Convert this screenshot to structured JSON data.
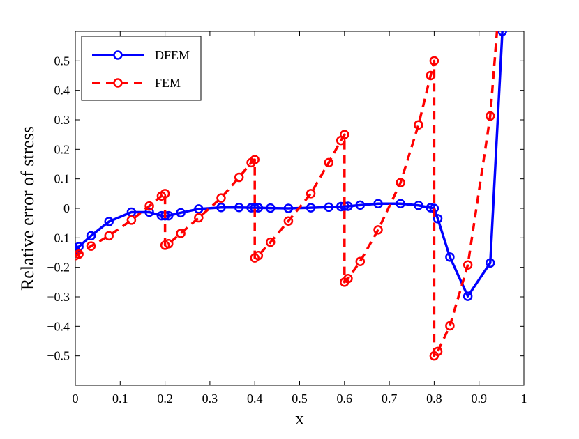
{
  "chart_data": {
    "type": "line",
    "title": "",
    "xlabel": "x",
    "ylabel": "Relative error of stress",
    "xlim": [
      0,
      1
    ],
    "ylim": [
      -0.6,
      0.6
    ],
    "xticks": [
      0,
      0.1,
      0.2,
      0.3,
      0.4,
      0.5,
      0.6,
      0.7,
      0.8,
      0.9,
      1
    ],
    "xtick_labels": [
      "0",
      "0.1",
      "0.2",
      "0.3",
      "0.4",
      "0.5",
      "0.6",
      "0.7",
      "0.8",
      "0.9",
      "1"
    ],
    "yticks": [
      -0.5,
      -0.4,
      -0.3,
      -0.2,
      -0.1,
      0,
      0.1,
      0.2,
      0.3,
      0.4,
      0.5
    ],
    "ytick_labels": [
      "−0.5",
      "−0.4",
      "−0.3",
      "−0.2",
      "−0.1",
      "0",
      "0.1",
      "0.2",
      "0.3",
      "0.4",
      "0.5"
    ],
    "grid": false,
    "legend_position": "top-left",
    "series": [
      {
        "name": "DFEM",
        "color": "#0000ff",
        "line_style": "solid",
        "marker": "circle",
        "x": [
          0,
          0.008,
          0.035,
          0.075,
          0.125,
          0.165,
          0.192,
          0.2,
          0.208,
          0.235,
          0.275,
          0.325,
          0.365,
          0.392,
          0.4,
          0.408,
          0.435,
          0.475,
          0.525,
          0.565,
          0.592,
          0.6,
          0.608,
          0.635,
          0.675,
          0.725,
          0.765,
          0.792,
          0.8,
          0.808,
          0.835,
          0.875,
          0.925,
          0.952
        ],
        "y": [
          -0.14,
          -0.13,
          -0.093,
          -0.045,
          -0.013,
          -0.013,
          -0.025,
          -0.025,
          -0.025,
          -0.015,
          -0.002,
          0.003,
          0.003,
          0.002,
          0.002,
          0.002,
          0.001,
          0.0,
          0.002,
          0.004,
          0.006,
          0.007,
          0.007,
          0.011,
          0.016,
          0.016,
          0.01,
          0.002,
          0.0,
          -0.035,
          -0.165,
          -0.298,
          -0.185,
          0.6
        ]
      },
      {
        "name": "FEM",
        "color": "#ff0000",
        "line_style": "dashed",
        "marker": "circle",
        "x": [
          0,
          0.008,
          0.035,
          0.075,
          0.125,
          0.165,
          0.192,
          0.2,
          0.2,
          0.208,
          0.235,
          0.275,
          0.325,
          0.365,
          0.392,
          0.4,
          0.4,
          0.408,
          0.435,
          0.475,
          0.525,
          0.565,
          0.592,
          0.6,
          0.6,
          0.608,
          0.635,
          0.675,
          0.725,
          0.765,
          0.792,
          0.8,
          0.8,
          0.808,
          0.835,
          0.875,
          0.925,
          0.94
        ],
        "y": [
          -0.16,
          -0.155,
          -0.128,
          -0.093,
          -0.04,
          0.008,
          0.042,
          0.05,
          -0.125,
          -0.12,
          -0.085,
          -0.032,
          0.035,
          0.105,
          0.155,
          0.165,
          -0.168,
          -0.16,
          -0.115,
          -0.043,
          0.05,
          0.155,
          0.23,
          0.25,
          -0.25,
          -0.238,
          -0.18,
          -0.073,
          0.087,
          0.283,
          0.45,
          0.5,
          -0.5,
          -0.485,
          -0.398,
          -0.192,
          0.313,
          0.6
        ],
        "marker_mask": [
          1,
          1,
          1,
          1,
          1,
          1,
          1,
          1,
          1,
          1,
          1,
          1,
          1,
          1,
          1,
          1,
          1,
          1,
          1,
          1,
          1,
          1,
          1,
          1,
          1,
          1,
          1,
          1,
          1,
          1,
          1,
          1,
          1,
          1,
          1,
          1,
          1,
          0
        ]
      }
    ]
  }
}
